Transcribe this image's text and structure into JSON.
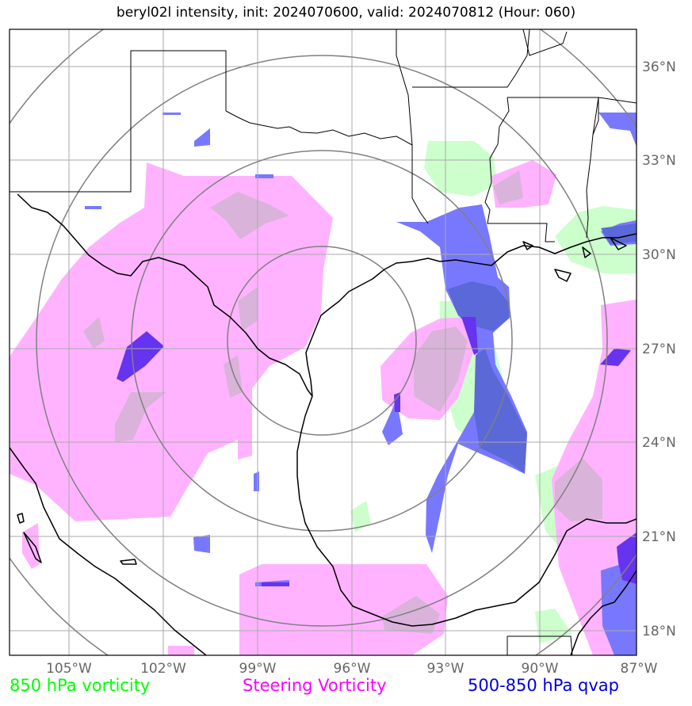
{
  "title": "beryl02l intensity, init: 2024070600, valid: 2024070812 (Hour: 060)",
  "lon_ticks": [
    "105°W",
    "102°W",
    "99°W",
    "96°W",
    "93°W",
    "90°W",
    "87°W"
  ],
  "lat_ticks": [
    "36°N",
    "33°N",
    "30°N",
    "27°N",
    "24°N",
    "21°N",
    "18°N"
  ],
  "legend": [
    {
      "label": "850 hPa vorticity",
      "color": "#00ff00"
    },
    {
      "label": "Steering Vorticity",
      "color": "#ff00ff"
    },
    {
      "label": "500-850 hPa qvap",
      "color": "#0000dd"
    }
  ],
  "colors": {
    "vorticity_fill": "#ccffcc",
    "steering_fill": "#ffb3ff",
    "overlap_fill": "#d9b3d9",
    "qvap_fill": "#7878ff",
    "qvap_overlap": "#6a6ad8",
    "qvap_dark": "#6633ee",
    "range_rings": "#808080",
    "gridlines": "#aaaaaa",
    "coast": "#000000"
  },
  "map": {
    "lon_range": [
      -106.9,
      -87.0
    ],
    "lat_range": [
      17.3,
      37.2
    ],
    "range_ring_count": 4,
    "storm_center": [
      -97.0,
      27.3
    ]
  }
}
